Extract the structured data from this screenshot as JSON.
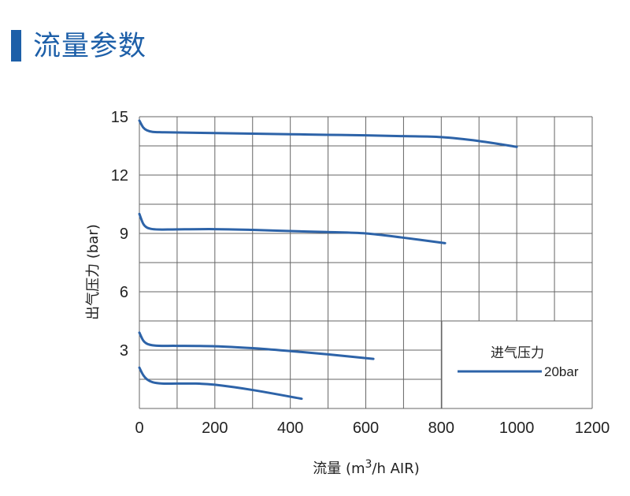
{
  "page": {
    "title": "流量参数",
    "accent_color": "#1d5fa8"
  },
  "chart_data": {
    "type": "line",
    "xlabel": "流量 (m3/h AIR)",
    "xlabel_parts": {
      "pre": "流量 (m",
      "sup": "3",
      "post": "/h AIR)"
    },
    "ylabel": "出气压力 (bar)",
    "xlim": [
      0,
      1200
    ],
    "ylim": [
      0,
      15
    ],
    "x_ticks": [
      0,
      200,
      400,
      600,
      800,
      1000,
      1200
    ],
    "y_ticks": [
      3,
      6,
      9,
      12,
      15
    ],
    "x_grid_step": 100,
    "y_grid_step": 1.5,
    "grid": true,
    "line_color": "#2d63a8",
    "legend": {
      "position": "bottom-right",
      "title": "进气压力",
      "items": [
        "20bar"
      ]
    },
    "series": [
      {
        "x": [
          0,
          10,
          20,
          35,
          60,
          100,
          200,
          300,
          400,
          500,
          600,
          700,
          800,
          900,
          1000
        ],
        "y": [
          14.8,
          14.45,
          14.3,
          14.22,
          14.2,
          14.19,
          14.16,
          14.13,
          14.1,
          14.07,
          14.04,
          14.0,
          13.95,
          13.75,
          13.45
        ]
      },
      {
        "x": [
          0,
          10,
          20,
          35,
          60,
          100,
          200,
          300,
          400,
          500,
          600,
          700,
          810
        ],
        "y": [
          10.0,
          9.5,
          9.3,
          9.22,
          9.2,
          9.21,
          9.22,
          9.18,
          9.12,
          9.07,
          9.0,
          8.78,
          8.5
        ]
      },
      {
        "x": [
          0,
          10,
          20,
          35,
          60,
          100,
          200,
          300,
          400,
          500,
          620
        ],
        "y": [
          3.9,
          3.5,
          3.33,
          3.25,
          3.22,
          3.22,
          3.2,
          3.1,
          2.95,
          2.78,
          2.55
        ]
      },
      {
        "x": [
          0,
          10,
          20,
          35,
          60,
          100,
          150,
          200,
          300,
          430
        ],
        "y": [
          2.1,
          1.72,
          1.5,
          1.35,
          1.28,
          1.28,
          1.28,
          1.22,
          0.95,
          0.5
        ]
      }
    ]
  }
}
